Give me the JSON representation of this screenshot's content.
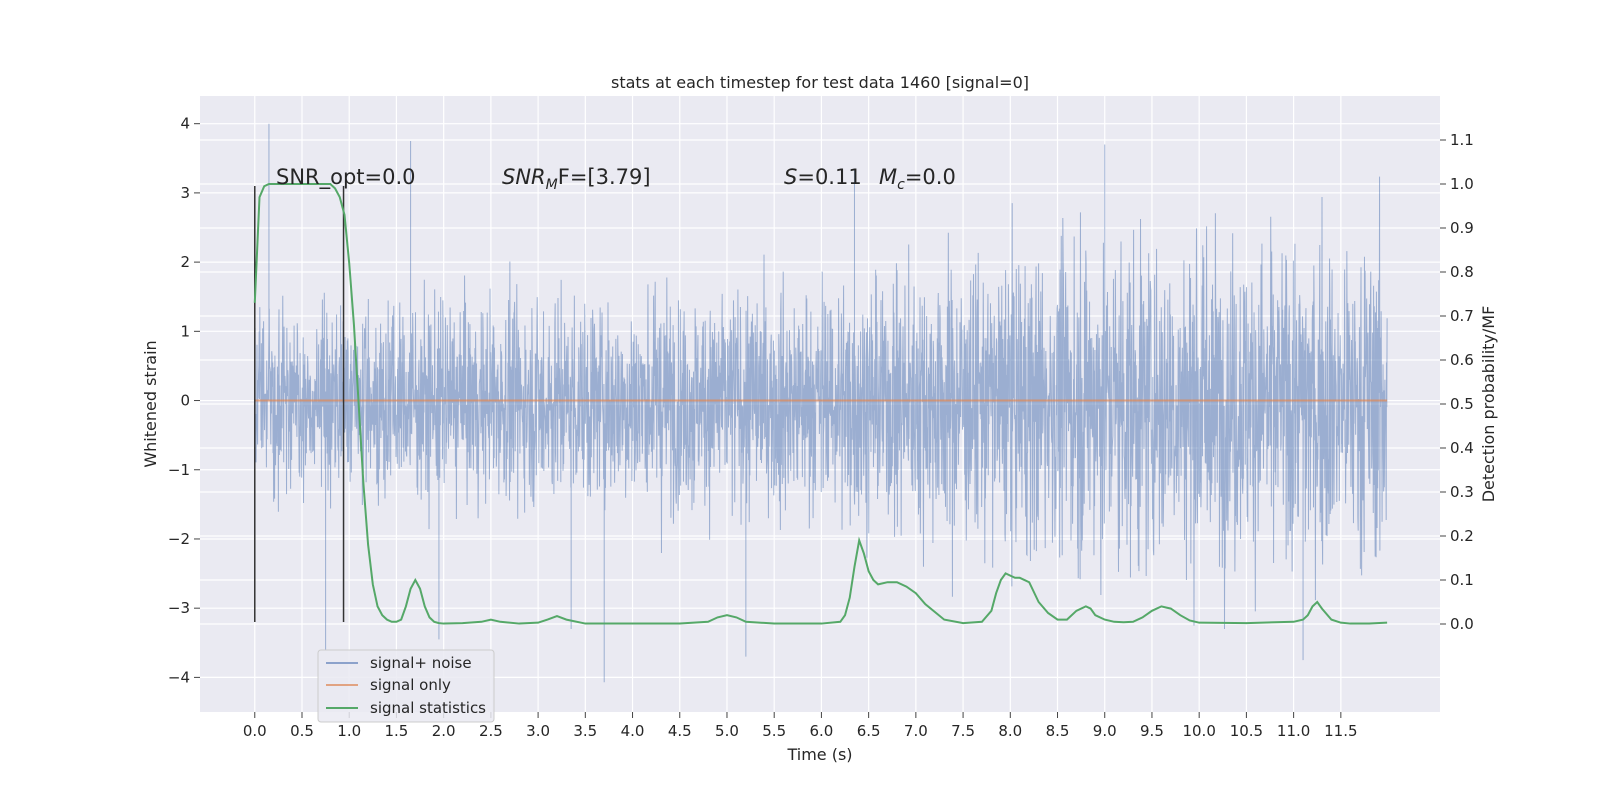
{
  "chart_data": {
    "type": "line",
    "title": "stats at each timestep for test data 1460 [signal=0]",
    "xlabel": "Time (s)",
    "ylabel_left": "Whitened strain",
    "ylabel_right": "Detection probability/MF",
    "xlim": [
      -0.58,
      12.55
    ],
    "ylim_left": [
      -4.5,
      4.4
    ],
    "ylim_right": [
      -0.2,
      1.2
    ],
    "x_ticks": [
      "0.0",
      "0.5",
      "1.0",
      "1.5",
      "2.0",
      "2.5",
      "3.0",
      "3.5",
      "4.0",
      "4.5",
      "5.0",
      "5.5",
      "6.0",
      "6.5",
      "7.0",
      "7.5",
      "8.0",
      "8.5",
      "9.0",
      "9.5",
      "10.0",
      "10.5",
      "11.0",
      "11.5"
    ],
    "y_ticks_left": [
      "−4",
      "−3",
      "−2",
      "−1",
      "0",
      "1",
      "2",
      "3",
      "4"
    ],
    "y_ticks_right": [
      "0.0",
      "0.1",
      "0.2",
      "0.3",
      "0.4",
      "0.5",
      "0.6",
      "0.7",
      "0.8",
      "0.9",
      "1.0",
      "1.1"
    ],
    "grid": true,
    "legend_position": "lower-left",
    "annotations": {
      "snr_opt": "SNR_opt=0.0",
      "snr_mf_sym": "SNR",
      "snr_mf_sub": "M",
      "snr_mf_rest": "F=[3.79]",
      "s_sym": "S",
      "s_rest": "=0.11",
      "mc_sym": "M",
      "mc_sub": "c",
      "mc_rest": "=0.0"
    },
    "vlines": [
      0.0,
      0.94
    ],
    "vline_range": [
      -3.2,
      3.1
    ],
    "series": [
      {
        "name": "signal+ noise",
        "color": "#4c72b0",
        "axis": "left",
        "x_range": [
          0.0,
          11.99
        ],
        "envelope_samples": [
          1.0,
          1.2,
          1.35,
          1.9,
          1.9
        ],
        "amplitude": 1.0,
        "peaks": [
          {
            "x": 0.15,
            "y": 4.0
          },
          {
            "x": 1.65,
            "y": 3.75
          },
          {
            "x": 6.35,
            "y": 3.35
          },
          {
            "x": 9.0,
            "y": 3.7
          },
          {
            "x": 3.7,
            "y": -4.07
          },
          {
            "x": 0.75,
            "y": -3.6
          },
          {
            "x": 11.1,
            "y": -3.75
          },
          {
            "x": 3.35,
            "y": -3.3
          },
          {
            "x": 5.2,
            "y": -3.7
          },
          {
            "x": 1.95,
            "y": -3.45
          }
        ]
      },
      {
        "name": "signal only",
        "color": "#dd8452",
        "axis": "left",
        "x": [
          0.0,
          11.99
        ],
        "y": [
          0.0,
          0.0
        ]
      },
      {
        "name": "signal statistics",
        "color": "#55a868",
        "axis": "right",
        "x": [
          0.0,
          0.05,
          0.1,
          0.15,
          0.2,
          0.3,
          0.5,
          0.7,
          0.8,
          0.85,
          0.9,
          0.95,
          1.0,
          1.05,
          1.1,
          1.15,
          1.2,
          1.25,
          1.3,
          1.35,
          1.4,
          1.45,
          1.5,
          1.55,
          1.6,
          1.65,
          1.7,
          1.75,
          1.8,
          1.85,
          1.9,
          1.95,
          2.0,
          2.2,
          2.4,
          2.5,
          2.6,
          2.8,
          3.0,
          3.1,
          3.2,
          3.3,
          3.5,
          4.0,
          4.5,
          4.8,
          4.9,
          5.0,
          5.1,
          5.2,
          5.5,
          6.0,
          6.2,
          6.25,
          6.3,
          6.35,
          6.4,
          6.45,
          6.5,
          6.55,
          6.6,
          6.7,
          6.8,
          6.9,
          7.0,
          7.1,
          7.3,
          7.5,
          7.7,
          7.8,
          7.85,
          7.9,
          7.95,
          8.0,
          8.05,
          8.1,
          8.2,
          8.3,
          8.4,
          8.5,
          8.6,
          8.7,
          8.8,
          8.85,
          8.9,
          9.0,
          9.1,
          9.2,
          9.3,
          9.4,
          9.5,
          9.6,
          9.7,
          9.8,
          9.9,
          10.0,
          10.5,
          10.8,
          11.0,
          11.1,
          11.15,
          11.2,
          11.25,
          11.3,
          11.4,
          11.5,
          11.6,
          11.8,
          11.99
        ],
        "y": [
          0.73,
          0.97,
          0.995,
          1.0,
          1.0,
          1.0,
          1.0,
          1.0,
          1.0,
          0.99,
          0.97,
          0.93,
          0.82,
          0.68,
          0.5,
          0.32,
          0.18,
          0.09,
          0.04,
          0.02,
          0.01,
          0.005,
          0.005,
          0.01,
          0.04,
          0.08,
          0.1,
          0.08,
          0.04,
          0.015,
          0.005,
          0.002,
          0.001,
          0.002,
          0.005,
          0.01,
          0.005,
          0.001,
          0.003,
          0.01,
          0.018,
          0.01,
          0.001,
          0.001,
          0.001,
          0.005,
          0.015,
          0.02,
          0.015,
          0.005,
          0.001,
          0.001,
          0.005,
          0.02,
          0.06,
          0.13,
          0.19,
          0.16,
          0.12,
          0.1,
          0.09,
          0.095,
          0.095,
          0.085,
          0.07,
          0.045,
          0.01,
          0.002,
          0.005,
          0.03,
          0.07,
          0.1,
          0.115,
          0.11,
          0.105,
          0.105,
          0.095,
          0.05,
          0.025,
          0.01,
          0.01,
          0.03,
          0.04,
          0.035,
          0.02,
          0.01,
          0.005,
          0.004,
          0.005,
          0.015,
          0.03,
          0.04,
          0.035,
          0.02,
          0.008,
          0.003,
          0.002,
          0.004,
          0.005,
          0.01,
          0.02,
          0.04,
          0.05,
          0.035,
          0.01,
          0.003,
          0.001,
          0.001,
          0.003
        ]
      }
    ]
  }
}
